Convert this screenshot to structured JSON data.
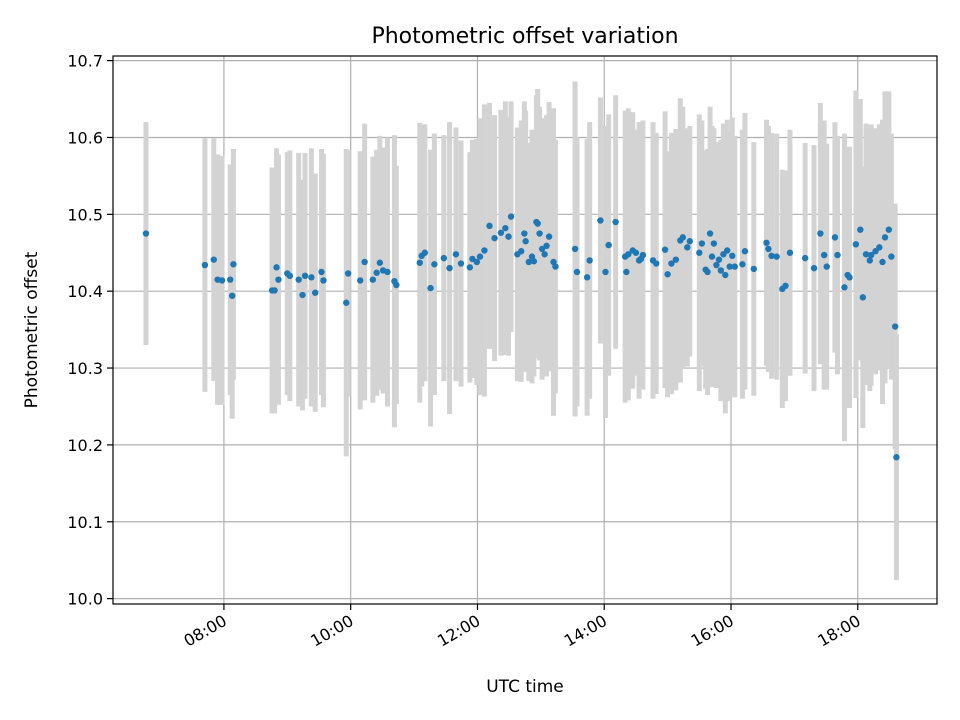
{
  "chart_data": {
    "type": "scatter",
    "title": "Photometric offset variation",
    "xlabel": "UTC time",
    "ylabel": "Photometric offset",
    "x_ticks": [
      "08:00",
      "10:00",
      "12:00",
      "14:00",
      "16:00",
      "18:00"
    ],
    "x_tick_hours": [
      8,
      10,
      12,
      14,
      16,
      18
    ],
    "xlim_hours": [
      6.25,
      19.25
    ],
    "y_ticks": [
      "10.0",
      "10.1",
      "10.2",
      "10.3",
      "10.4",
      "10.5",
      "10.6",
      "10.7"
    ],
    "ylim": [
      9.993,
      10.706
    ],
    "grid": true,
    "colors": {
      "point": "#1f77b4",
      "errorbar": "#d3d3d3"
    },
    "series": [
      {
        "x_hours": [
          6.77,
          7.7,
          7.84,
          7.9,
          7.97,
          8.1,
          8.13,
          8.15,
          8.76,
          8.8,
          8.83,
          8.86,
          9.0,
          9.04,
          9.18,
          9.24,
          9.28,
          9.38,
          9.44,
          9.54,
          9.57,
          9.93,
          9.96,
          10.15,
          10.22,
          10.35,
          10.41,
          10.46,
          10.51,
          10.58,
          10.69,
          10.72,
          11.09,
          11.12,
          11.17,
          11.26,
          11.32,
          11.47,
          11.56,
          11.66,
          11.74,
          11.88,
          11.92,
          11.99,
          12.04,
          12.11,
          12.19,
          12.27,
          12.37,
          12.44,
          12.49,
          12.53,
          12.63,
          12.69,
          12.74,
          12.76,
          12.81,
          12.86,
          12.89,
          12.93,
          12.95,
          12.98,
          13.02,
          13.06,
          13.09,
          13.13,
          13.2,
          13.23,
          13.54,
          13.57,
          13.73,
          13.77,
          13.94,
          14.02,
          14.07,
          14.18,
          14.33,
          14.35,
          14.38,
          14.45,
          14.5,
          14.55,
          14.58,
          14.61,
          14.77,
          14.82,
          14.96,
          15.0,
          15.06,
          15.13,
          15.2,
          15.24,
          15.31,
          15.35,
          15.5,
          15.54,
          15.6,
          15.63,
          15.67,
          15.7,
          15.73,
          15.77,
          15.81,
          15.84,
          15.88,
          15.91,
          15.94,
          15.98,
          16.02,
          16.06,
          16.18,
          16.22,
          16.36,
          16.56,
          16.59,
          16.64,
          16.72,
          16.81,
          16.86,
          16.93,
          17.17,
          17.31,
          17.41,
          17.47,
          17.51,
          17.64,
          17.68,
          17.79,
          17.84,
          17.87,
          17.97,
          18.04,
          18.08,
          18.13,
          18.19,
          18.21,
          18.28,
          18.34,
          18.39,
          18.43,
          18.49,
          18.53,
          18.59,
          18.61
        ],
        "y": [
          10.475,
          10.434,
          10.441,
          10.415,
          10.414,
          10.415,
          10.394,
          10.435,
          10.401,
          10.401,
          10.431,
          10.415,
          10.423,
          10.42,
          10.415,
          10.395,
          10.42,
          10.418,
          10.398,
          10.425,
          10.414,
          10.385,
          10.423,
          10.414,
          10.438,
          10.415,
          10.424,
          10.437,
          10.427,
          10.425,
          10.413,
          10.408,
          10.437,
          10.446,
          10.45,
          10.404,
          10.435,
          10.443,
          10.43,
          10.448,
          10.436,
          10.431,
          10.442,
          10.438,
          10.445,
          10.453,
          10.485,
          10.469,
          10.476,
          10.482,
          10.471,
          10.497,
          10.448,
          10.452,
          10.475,
          10.465,
          10.438,
          10.445,
          10.439,
          10.49,
          10.488,
          10.475,
          10.455,
          10.448,
          10.459,
          10.471,
          10.438,
          10.432,
          10.455,
          10.425,
          10.418,
          10.44,
          10.492,
          10.425,
          10.46,
          10.49,
          10.445,
          10.425,
          10.448,
          10.453,
          10.45,
          10.44,
          10.442,
          10.447,
          10.44,
          10.436,
          10.454,
          10.422,
          10.436,
          10.441,
          10.466,
          10.47,
          10.457,
          10.465,
          10.45,
          10.462,
          10.428,
          10.425,
          10.475,
          10.445,
          10.462,
          10.434,
          10.441,
          10.427,
          10.448,
          10.421,
          10.453,
          10.432,
          10.446,
          10.432,
          10.435,
          10.452,
          10.429,
          10.463,
          10.455,
          10.446,
          10.445,
          10.403,
          10.407,
          10.45,
          10.443,
          10.43,
          10.475,
          10.447,
          10.432,
          10.47,
          10.447,
          10.405,
          10.421,
          10.418,
          10.461,
          10.48,
          10.392,
          10.448,
          10.44,
          10.447,
          10.452,
          10.457,
          10.438,
          10.47,
          10.48,
          10.445,
          10.354,
          10.184
        ],
        "err": [
          0.145,
          0.165,
          0.158,
          0.163,
          0.162,
          0.15,
          0.16,
          0.15,
          0.16,
          0.16,
          0.155,
          0.163,
          0.158,
          0.163,
          0.165,
          0.15,
          0.16,
          0.168,
          0.155,
          0.16,
          0.165,
          0.2,
          0.16,
          0.168,
          0.18,
          0.16,
          0.16,
          0.165,
          0.16,
          0.175,
          0.19,
          0.155,
          0.182,
          0.17,
          0.167,
          0.18,
          0.17,
          0.16,
          0.19,
          0.165,
          0.16,
          0.15,
          0.155,
          0.16,
          0.18,
          0.19,
          0.16,
          0.16,
          0.16,
          0.165,
          0.155,
          0.15,
          0.165,
          0.17,
          0.172,
          0.17,
          0.155,
          0.165,
          0.15,
          0.165,
          0.175,
          0.165,
          0.17,
          0.155,
          0.17,
          0.175,
          0.2,
          0.165,
          0.218,
          0.175,
          0.18,
          0.18,
          0.16,
          0.19,
          0.17,
          0.165,
          0.19,
          0.16,
          0.19,
          0.18,
          0.16,
          0.18,
          0.16,
          0.175,
          0.18,
          0.17,
          0.18,
          0.16,
          0.17,
          0.17,
          0.185,
          0.17,
          0.155,
          0.15,
          0.18,
          0.16,
          0.155,
          0.16,
          0.165,
          0.17,
          0.15,
          0.16,
          0.15,
          0.17,
          0.17,
          0.18,
          0.17,
          0.175,
          0.18,
          0.17,
          0.175,
          0.18,
          0.165,
          0.16,
          0.16,
          0.16,
          0.16,
          0.155,
          0.15,
          0.16,
          0.15,
          0.16,
          0.17,
          0.175,
          0.16,
          0.15,
          0.155,
          0.2,
          0.165,
          0.17,
          0.2,
          0.17,
          0.17,
          0.17,
          0.17,
          0.17,
          0.16,
          0.16,
          0.185,
          0.19,
          0.18,
          0.16,
          0.16,
          0.16
        ]
      }
    ]
  }
}
